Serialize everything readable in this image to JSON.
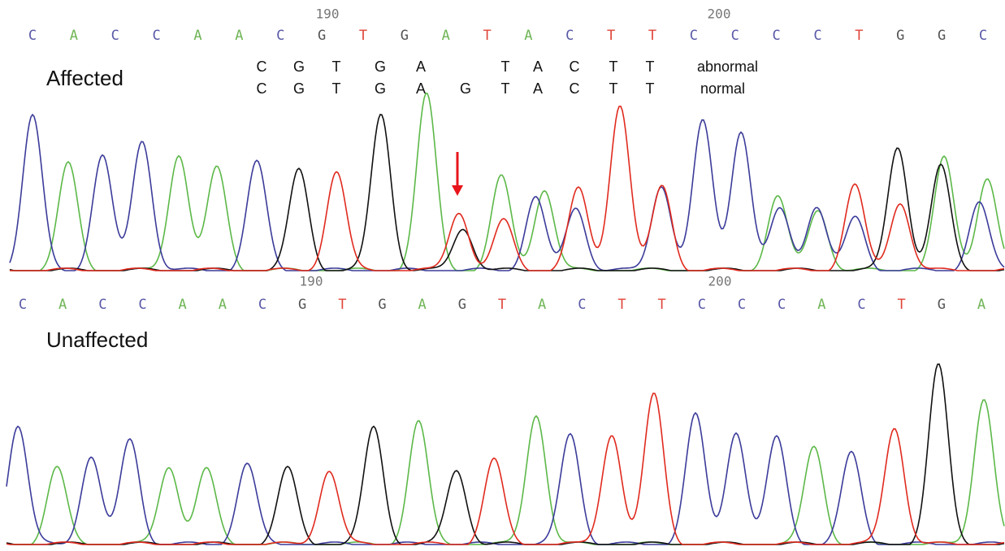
{
  "affected_panel": {
    "label": "Affected",
    "position_labels": [
      "190",
      "200"
    ],
    "base_calls": [
      "C",
      "A",
      "C",
      "C",
      "A",
      "A",
      "C",
      "G",
      "T",
      "G",
      "A",
      "T",
      "A",
      "C",
      "T",
      "T",
      "C",
      "C",
      "C",
      "C",
      "T",
      "G",
      "G",
      "C"
    ],
    "alignment": {
      "abnormal": {
        "bases_before": [
          "C",
          "G",
          "T",
          "G",
          "A"
        ],
        "bases_after": [
          "T",
          "A",
          "C",
          "T",
          "T"
        ],
        "label": "abnormal"
      },
      "normal": {
        "bases": [
          "C",
          "G",
          "T",
          "G",
          "A",
          "G",
          "T",
          "A",
          "C",
          "T",
          "T"
        ],
        "label": "normal",
        "highlight_color": "#e8141c"
      }
    }
  },
  "unaffected_panel": {
    "label": "Unaffected",
    "position_labels": [
      "190",
      "200"
    ],
    "base_calls": [
      "C",
      "A",
      "C",
      "C",
      "A",
      "A",
      "C",
      "G",
      "T",
      "G",
      "A",
      "G",
      "T",
      "A",
      "C",
      "T",
      "T",
      "C",
      "C",
      "C",
      "A",
      "C",
      "T",
      "G",
      "A"
    ]
  },
  "base_colors": {
    "A": "#6fb556",
    "C": "#5a5aa8",
    "G": "#555555",
    "T": "#e0463a"
  },
  "trace_colors": {
    "A": "#5cb848",
    "C": "#3b3b9a",
    "G": "#111111",
    "T": "#e02a1e"
  },
  "arrow_color": "#e8141c"
}
